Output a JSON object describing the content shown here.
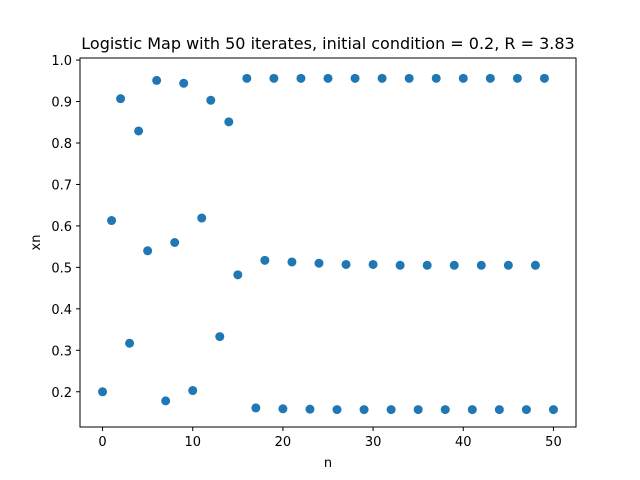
{
  "chart_data": {
    "type": "scatter",
    "title": "Logistic Map with 50 iterates, initial condition = 0.2, R = 3.83",
    "xlabel": "n",
    "ylabel": "xn",
    "xlim": [
      -2.5,
      52.5
    ],
    "ylim": [
      0.115,
      1.005
    ],
    "xticks": [
      0,
      10,
      20,
      30,
      40,
      50
    ],
    "yticks": [
      0.2,
      0.3,
      0.4,
      0.5,
      0.6,
      0.7,
      0.8,
      0.9,
      1.0
    ],
    "xtick_labels": [
      "0",
      "10",
      "20",
      "30",
      "40",
      "50"
    ],
    "ytick_labels": [
      "0.2",
      "0.3",
      "0.4",
      "0.5",
      "0.6",
      "0.7",
      "0.8",
      "0.9",
      "1.0"
    ],
    "grid": false,
    "marker_color": "#1f77b4",
    "series": [
      {
        "x": [
          0,
          1,
          2,
          3,
          4,
          5,
          6,
          7,
          8,
          9,
          10,
          11,
          12,
          13,
          14,
          15,
          16,
          17,
          18,
          19,
          20,
          21,
          22,
          23,
          24,
          25,
          26,
          27,
          28,
          29,
          30,
          31,
          32,
          33,
          34,
          35,
          36,
          37,
          38,
          39,
          40,
          41,
          42,
          43,
          44,
          45,
          46,
          47,
          48,
          49,
          50
        ],
        "y": [
          0.2,
          0.613,
          0.907,
          0.317,
          0.829,
          0.54,
          0.951,
          0.178,
          0.56,
          0.944,
          0.203,
          0.619,
          0.903,
          0.333,
          0.851,
          0.482,
          0.956,
          0.161,
          0.517,
          0.956,
          0.159,
          0.513,
          0.956,
          0.158,
          0.51,
          0.956,
          0.157,
          0.507,
          0.956,
          0.157,
          0.507,
          0.956,
          0.157,
          0.505,
          0.956,
          0.157,
          0.505,
          0.956,
          0.157,
          0.505,
          0.956,
          0.157,
          0.505,
          0.956,
          0.157,
          0.505,
          0.956,
          0.157,
          0.505,
          0.956,
          0.157
        ]
      }
    ]
  }
}
